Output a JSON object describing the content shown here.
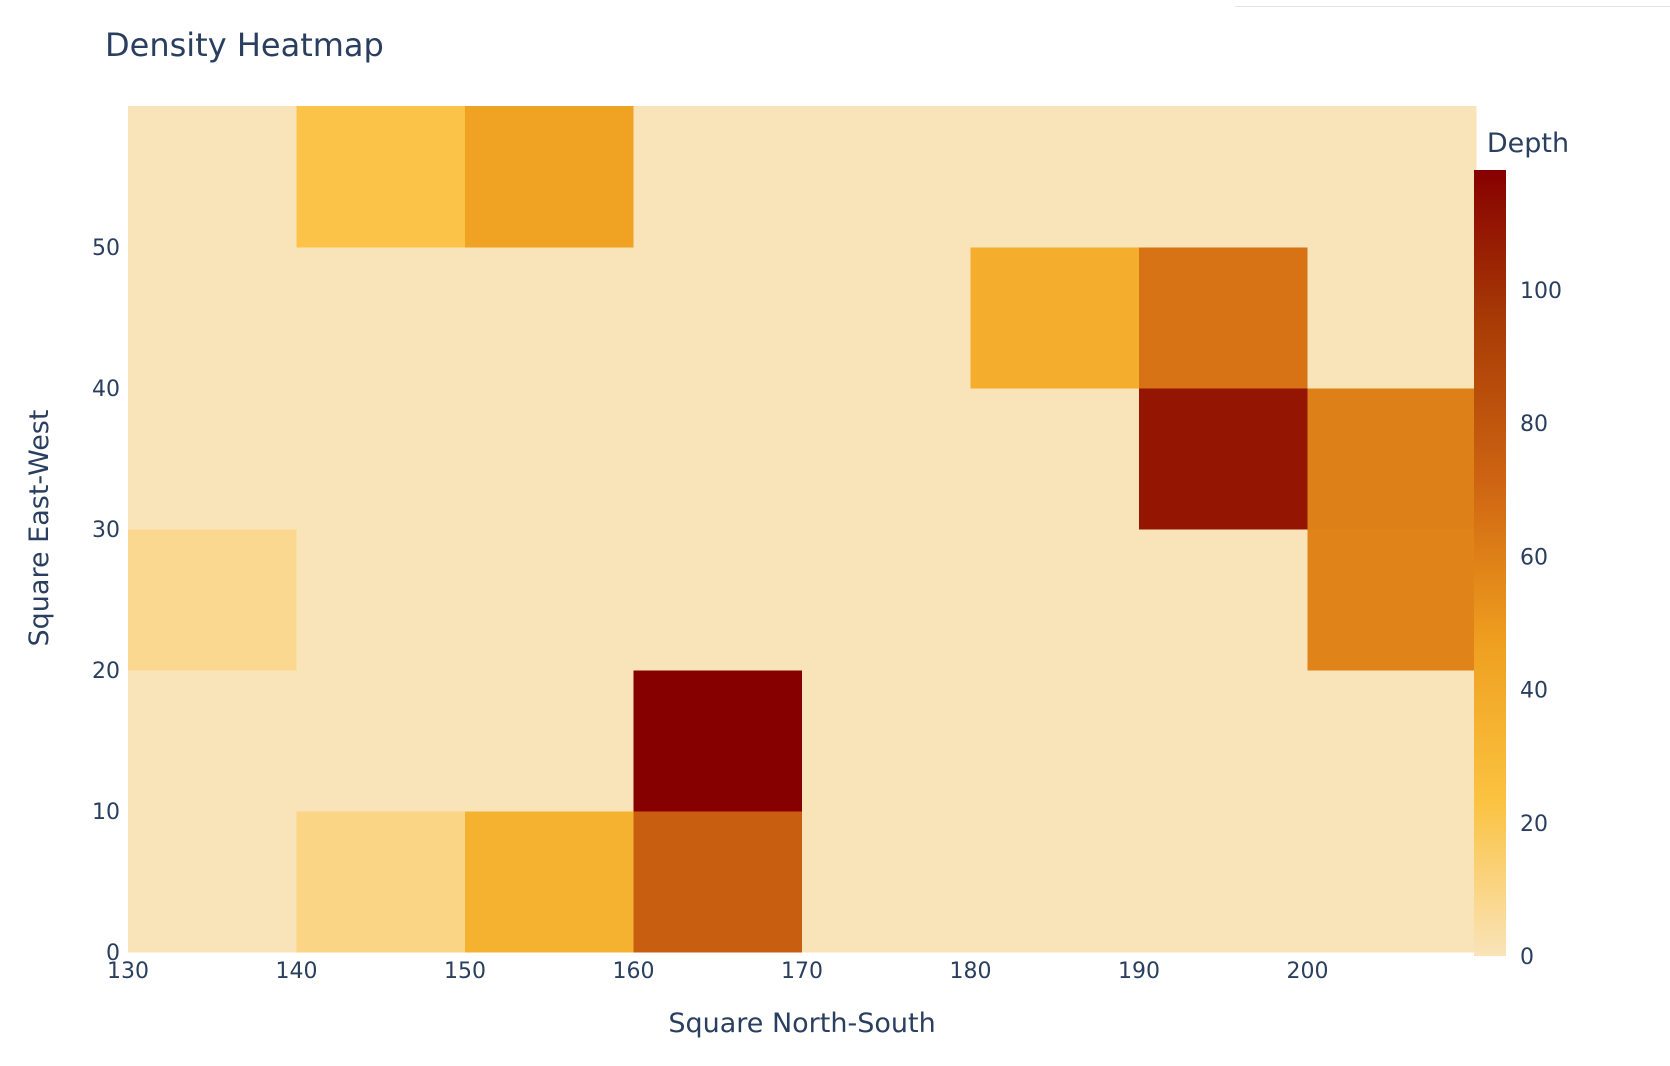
{
  "chart_data": {
    "type": "heatmap",
    "title": "Density Heatmap",
    "xlabel": "Square North-South",
    "ylabel": "Square East-West",
    "colorbar_title": "Depth",
    "x_ticks": [
      130,
      140,
      150,
      160,
      170,
      180,
      190,
      200
    ],
    "y_ticks": [
      0,
      10,
      20,
      30,
      40,
      50
    ],
    "colorbar_ticks": [
      0,
      20,
      40,
      60,
      80,
      100
    ],
    "xlim": [
      130,
      210
    ],
    "ylim": [
      0,
      60
    ],
    "bin_size": 10,
    "color_range": [
      0,
      118
    ],
    "colorscale": [
      "#f9e3b8",
      "#fbc240",
      "#ef9f1f",
      "#cf6512",
      "#a93d06",
      "#870000"
    ],
    "background_value": 0,
    "cells": [
      {
        "x": 130,
        "y": 20,
        "value": 8
      },
      {
        "x": 140,
        "y": 0,
        "value": 10
      },
      {
        "x": 140,
        "y": 50,
        "value": 22
      },
      {
        "x": 150,
        "y": 0,
        "value": 35
      },
      {
        "x": 150,
        "y": 50,
        "value": 45
      },
      {
        "x": 160,
        "y": 0,
        "value": 75
      },
      {
        "x": 160,
        "y": 10,
        "value": 118
      },
      {
        "x": 180,
        "y": 40,
        "value": 38
      },
      {
        "x": 190,
        "y": 30,
        "value": 110
      },
      {
        "x": 190,
        "y": 40,
        "value": 65
      },
      {
        "x": 200,
        "y": 20,
        "value": 58
      },
      {
        "x": 200,
        "y": 30,
        "value": 60
      }
    ]
  }
}
